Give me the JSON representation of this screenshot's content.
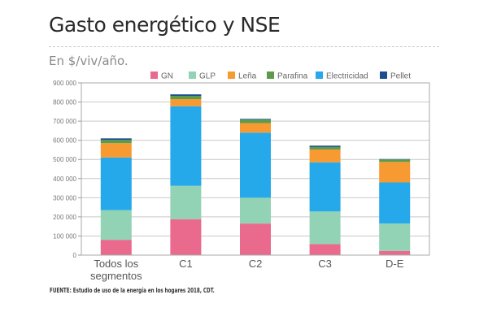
{
  "header": {
    "title": "Gasto energético y NSE",
    "subtitle": "En $/viv/año."
  },
  "footer": {
    "source": "FUENTE: Estudio de uso de la energía en los hogares 2018, CDT."
  },
  "chart_data": {
    "type": "bar",
    "stacked": true,
    "title": "Gasto energético y NSE",
    "subtitle": "En $/viv/año.",
    "xlabel": "",
    "ylabel": "",
    "ylim": [
      0,
      900000
    ],
    "yticks": [
      0,
      100000,
      200000,
      300000,
      400000,
      500000,
      600000,
      700000,
      800000,
      900000
    ],
    "ytick_labels": [
      "0",
      "100 000",
      "200 000",
      "300 000",
      "400 000",
      "500 000",
      "600 000",
      "700 000",
      "800 000",
      "900 000"
    ],
    "grid": true,
    "legend_position": "top-right",
    "categories": [
      [
        "Todos los",
        "segmentos"
      ],
      [
        "C1"
      ],
      [
        "C2"
      ],
      [
        "C3"
      ],
      [
        "D-E"
      ]
    ],
    "series": [
      {
        "name": "GN",
        "color": "#e96a8d",
        "values": [
          80000,
          188000,
          165000,
          58000,
          22000
        ]
      },
      {
        "name": "GLP",
        "color": "#93d3b5",
        "values": [
          155000,
          174000,
          135000,
          170000,
          143000
        ]
      },
      {
        "name": "Leña",
        "color": "#f79a32",
        "values": [
          75000,
          37000,
          50000,
          67000,
          107000
        ]
      },
      {
        "name": "Parafina",
        "color": "#5d9a4a",
        "values": [
          17000,
          17000,
          18000,
          13000,
          13000
        ]
      },
      {
        "name": "Electricidad",
        "color": "#25a9ea",
        "values": [
          275000,
          416000,
          340000,
          257000,
          215000
        ]
      },
      {
        "name": "Pellet",
        "color": "#1b4f91",
        "values": [
          8000,
          8000,
          4000,
          7000,
          2000
        ]
      }
    ],
    "stack_order": [
      "GN",
      "GLP",
      "Electricidad",
      "Leña",
      "Parafina",
      "Pellet"
    ],
    "source": "FUENTE: Estudio de uso de la energía en los hogares 2018, CDT."
  }
}
